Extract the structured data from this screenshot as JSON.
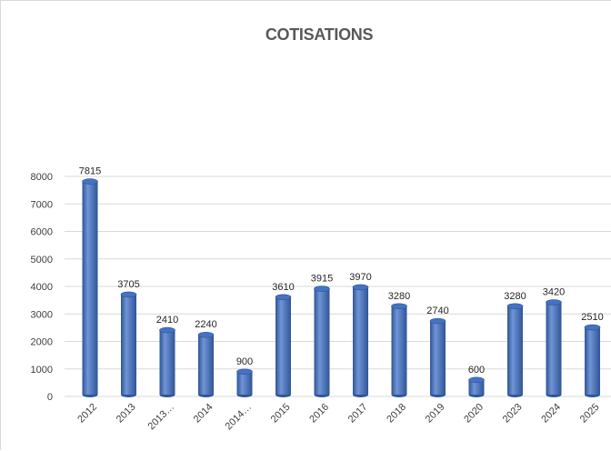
{
  "chart_data": {
    "type": "bar",
    "title": "COTISATIONS",
    "categories": [
      "2012",
      "2013",
      "2013…",
      "2014",
      "2014…",
      "2015",
      "2016",
      "2017",
      "2018",
      "2019",
      "2020",
      "2023",
      "2024",
      "2025"
    ],
    "values": [
      7815,
      3705,
      2410,
      2240,
      900,
      3610,
      3915,
      3970,
      3280,
      2740,
      600,
      3280,
      3420,
      2510
    ],
    "ylim": [
      0,
      8000
    ],
    "yticks": [
      0,
      1000,
      2000,
      3000,
      4000,
      5000,
      6000,
      7000,
      8000
    ],
    "grid": true,
    "legend": "none",
    "bar_color": "#4472c4",
    "bar_color_dark": "#2f5597",
    "bar_color_light": "#6f95d6"
  }
}
